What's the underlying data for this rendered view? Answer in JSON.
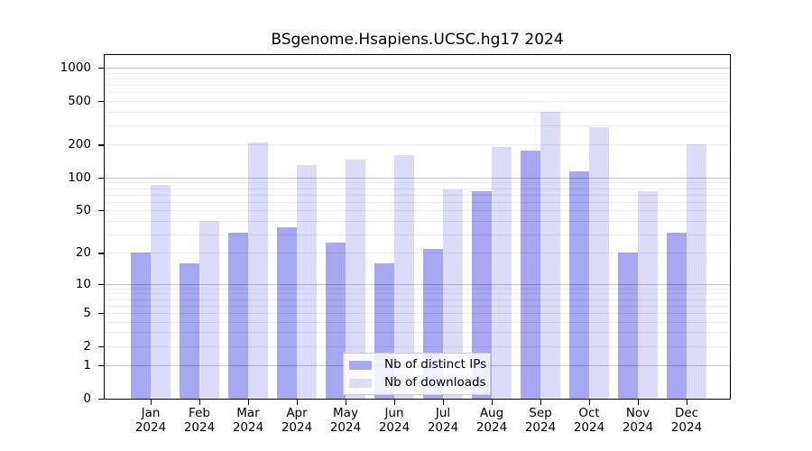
{
  "chart_data": {
    "type": "bar",
    "title": "BSgenome.Hsapiens.UCSC.hg17 2024",
    "categories": [
      "Jan 2024",
      "Feb 2024",
      "Mar 2024",
      "Apr 2024",
      "May 2024",
      "Jun 2024",
      "Jul 2024",
      "Aug 2024",
      "Sep 2024",
      "Oct 2024",
      "Nov 2024",
      "Dec 2024"
    ],
    "series": [
      {
        "name": "Nb of distinct IPs",
        "color": "#a7a7f2",
        "values": [
          20,
          16,
          31,
          35,
          25,
          16,
          22,
          75,
          178,
          115,
          20,
          31
        ]
      },
      {
        "name": "Nb of downloads",
        "color": "#dcdcf8",
        "values": [
          85,
          40,
          210,
          130,
          145,
          160,
          78,
          190,
          400,
          290,
          75,
          200
        ]
      }
    ],
    "y_ticks": [
      0,
      1,
      2,
      5,
      10,
      20,
      50,
      100,
      200,
      500,
      1000
    ],
    "y_scale": "log1p",
    "ylim": [
      0,
      1300
    ],
    "xlabel": "",
    "ylabel": "",
    "grid": "horizontal, minor lines each 1-9 per decade, darker at powers of 10",
    "legend_position": "inside bottom-center",
    "background_color": "#ffffff",
    "axis_color": "#000000",
    "grid_major_color": "#c9c9c9",
    "grid_minor_color": "#ededed"
  }
}
